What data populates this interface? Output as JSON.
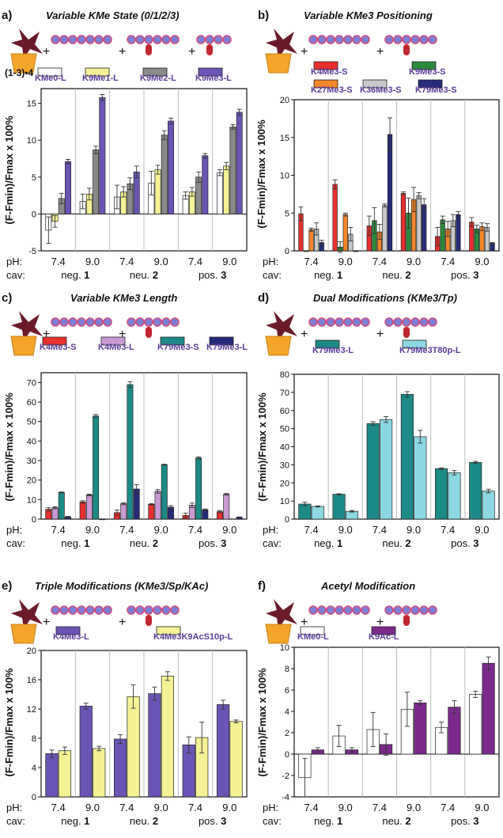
{
  "x_axis_text": {
    "ph_label": "pH:",
    "cav_label": "cav:",
    "ph_values": [
      "7.4",
      "9.0",
      "7.4",
      "9.0",
      "7.4",
      "9.0"
    ],
    "cav_groups": [
      "neg. 1",
      "neu. 2",
      "pos. 3"
    ]
  },
  "colors": {
    "purple": "#6a55b5",
    "yellow": "#f4f294",
    "gray": "#8a8a8a",
    "white": "#ffffff",
    "red": "#e8302c",
    "green": "#2d8a3a",
    "orange": "#f2872a",
    "lightgray": "#c8c8c8",
    "navy": "#262b7a",
    "lilac": "#c99ad4",
    "teal": "#1c8a86",
    "lightcyan": "#8cd8e2",
    "darkpurple": "#7b2a8c"
  },
  "chart_data": [
    {
      "panel": "a)",
      "type": "bar",
      "title": "Variable KMe State (0/1/2/3)",
      "ylabel": "(F-Fmin)/Fmax x 100%",
      "ylim": [
        -5,
        17
      ],
      "yticks": [
        -5,
        0,
        5,
        10,
        15
      ],
      "prefix_label": "(1-3)•4",
      "categories": [
        "pH 7.4 neg. 1",
        "pH 9.0 neg. 1",
        "pH 7.4 neu. 2",
        "pH 9.0 neu. 2",
        "pH 7.4 pos. 3",
        "pH 9.0 pos. 3"
      ],
      "series": [
        {
          "name": "KMe0-L",
          "color": "white",
          "values": [
            -2.2,
            1.7,
            2.3,
            4.2,
            2.5,
            5.6
          ],
          "errors": [
            1.8,
            1.0,
            1.6,
            1.6,
            0.5,
            0.4
          ]
        },
        {
          "name": "K9Me1-L",
          "color": "yellow",
          "values": [
            -1.0,
            2.7,
            3.0,
            6.0,
            3.0,
            6.5
          ],
          "errors": [
            0.8,
            0.8,
            0.7,
            0.6,
            0.6,
            0.5
          ]
        },
        {
          "name": "K9Me2-L",
          "color": "gray",
          "values": [
            2.1,
            8.7,
            4.1,
            10.7,
            5.0,
            11.8
          ],
          "errors": [
            0.7,
            0.5,
            0.8,
            0.6,
            0.7,
            0.3
          ]
        },
        {
          "name": "K9Me3-L",
          "color": "purple",
          "values": [
            7.1,
            15.8,
            5.7,
            12.6,
            7.9,
            13.8
          ],
          "errors": [
            0.3,
            0.4,
            0.8,
            0.4,
            0.3,
            0.4
          ]
        }
      ]
    },
    {
      "panel": "b)",
      "type": "bar",
      "title": "Variable KMe3 Positioning",
      "ylabel": "(F-Fmin)/Fmax x 100%",
      "ylim": [
        0,
        20
      ],
      "yticks": [
        0,
        5,
        10,
        15,
        20
      ],
      "categories": [
        "pH 7.4 neg. 1",
        "pH 9.0 neg. 1",
        "pH 7.4 neu. 2",
        "pH 9.0 neu. 2",
        "pH 7.4 pos. 3",
        "pH 9.0 pos. 3"
      ],
      "series": [
        {
          "name": "K4Me3-S",
          "color": "red",
          "values": [
            4.9,
            8.8,
            3.3,
            7.6,
            1.9,
            3.8
          ],
          "errors": [
            0.9,
            0.6,
            1.3,
            0.2,
            1.2,
            0.6
          ]
        },
        {
          "name": "K9Me3-S",
          "color": "green",
          "values": [
            -0.1,
            0.5,
            4.0,
            5.0,
            4.1,
            2.9
          ],
          "errors": [
            0.0,
            0.7,
            1.7,
            2.0,
            0.5,
            0.5
          ]
        },
        {
          "name": "K27Me3-S",
          "color": "orange",
          "values": [
            2.8,
            4.8,
            2.5,
            6.8,
            2.9,
            3.2
          ],
          "errors": [
            0.2,
            0.2,
            1.0,
            1.6,
            1.0,
            0.5
          ]
        },
        {
          "name": "K36Me3-S",
          "color": "lightgray",
          "values": [
            2.9,
            2.2,
            6.0,
            7.3,
            4.0,
            3.1
          ],
          "errors": [
            0.8,
            0.9,
            0.2,
            0.4,
            0.8,
            0.5
          ]
        },
        {
          "name": "K79Me3-S",
          "color": "navy",
          "values": [
            1.1,
            -0.1,
            15.4,
            6.1,
            4.8,
            1.0
          ],
          "errors": [
            0.3,
            0.0,
            2.2,
            0.8,
            0.4,
            0.1
          ]
        }
      ]
    },
    {
      "panel": "c)",
      "type": "bar",
      "title": "Variable KMe3 Length",
      "ylabel": "(F-Fmin)/Fmax x 100%",
      "ylim": [
        0,
        75
      ],
      "yticks": [
        0,
        10,
        20,
        30,
        40,
        50,
        60,
        70
      ],
      "categories": [
        "pH 7.4 neg. 1",
        "pH 9.0 neg. 1",
        "pH 7.4 neu. 2",
        "pH 9.0 neu. 2",
        "pH 7.4 pos. 3",
        "pH 9.0 pos. 3"
      ],
      "series": [
        {
          "name": "K4Me3-S",
          "color": "red",
          "values": [
            5.0,
            8.8,
            3.3,
            7.6,
            1.9,
            3.8
          ],
          "errors": [
            0.8,
            0.6,
            1.3,
            0.3,
            1.2,
            0.6
          ]
        },
        {
          "name": "K4Me3-L",
          "color": "lilac",
          "values": [
            5.8,
            12.4,
            7.9,
            14.2,
            7.1,
            12.7
          ],
          "errors": [
            0.5,
            0.4,
            0.5,
            0.9,
            1.1,
            0.4
          ]
        },
        {
          "name": "K79Me3-S",
          "color": "teal",
          "values": [
            13.7,
            52.8,
            68.9,
            27.9,
            31.3,
            0
          ],
          "errors": [
            0.2,
            0.8,
            1.5,
            0.2,
            0.5,
            0
          ]
        },
        {
          "name": "K79Me3-L",
          "color": "navy",
          "values": [
            1.1,
            -0.1,
            15.4,
            6.1,
            4.8,
            1.0
          ],
          "errors": [
            0.3,
            0.0,
            2.2,
            0.8,
            0.4,
            0.1
          ]
        }
      ]
    },
    {
      "panel": "d)",
      "type": "bar",
      "title": "Dual Modifications (KMe3/Tp)",
      "ylabel": "(F-Fmin)/Fmax x 100%",
      "ylim": [
        0,
        80
      ],
      "yticks": [
        0,
        10,
        20,
        30,
        40,
        50,
        60,
        70,
        80
      ],
      "categories": [
        "pH 7.4 neg. 1",
        "pH 9.0 neg. 1",
        "pH 7.4 neu. 2",
        "pH 9.0 neu. 2",
        "pH 7.4 pos. 3",
        "pH 9.0 pos. 3"
      ],
      "series": [
        {
          "name": "K79Me3-L",
          "color": "teal",
          "values": [
            8.3,
            13.7,
            52.8,
            68.9,
            27.9,
            31.3
          ],
          "errors": [
            1.0,
            0.3,
            1.0,
            1.5,
            0.4,
            0.6
          ]
        },
        {
          "name": "K79Me3T80p-L",
          "color": "lightcyan",
          "values": [
            7.0,
            4.3,
            55.0,
            45.5,
            25.6,
            15.5
          ],
          "errors": [
            0.3,
            0.4,
            1.6,
            3.5,
            1.2,
            1.0
          ]
        }
      ]
    },
    {
      "panel": "e)",
      "type": "bar",
      "title": "Triple Modifications (KMe3/Sp/KAc)",
      "ylabel": "(F-Fmin)/Fmax x 100%",
      "ylim": [
        0,
        20
      ],
      "yticks": [
        0,
        4,
        8,
        12,
        16,
        20
      ],
      "categories": [
        "pH 7.4 neg. 1",
        "pH 9.0 neg. 1",
        "pH 7.4 neu. 2",
        "pH 9.0 neu. 2",
        "pH 7.4 pos. 3",
        "pH 9.0 pos. 3"
      ],
      "series": [
        {
          "name": "K4Me3-L",
          "color": "purple",
          "values": [
            5.9,
            12.4,
            7.9,
            14.1,
            7.1,
            12.6
          ],
          "errors": [
            0.5,
            0.4,
            0.6,
            0.9,
            1.1,
            0.6
          ]
        },
        {
          "name": "K4Me3K9AcS10p-L",
          "color": "yellow",
          "values": [
            6.3,
            6.6,
            13.7,
            16.5,
            8.1,
            10.3
          ],
          "errors": [
            0.5,
            0.3,
            1.6,
            0.6,
            2.1,
            0.2
          ]
        }
      ]
    },
    {
      "panel": "f)",
      "type": "bar",
      "title": "Acetyl Modification",
      "ylabel": "(F-Fmin)/Fmax x 100%",
      "ylim": [
        -4,
        10
      ],
      "yticks": [
        -4,
        -2,
        0,
        2,
        4,
        6,
        8,
        10
      ],
      "categories": [
        "pH 7.4 neg. 1",
        "pH 9.0 neg. 1",
        "pH 7.4 neu. 2",
        "pH 9.0 neu. 2",
        "pH 7.4 pos. 3",
        "pH 9.0 pos. 3"
      ],
      "series": [
        {
          "name": "KMe0-L",
          "color": "white",
          "values": [
            -2.2,
            1.7,
            2.3,
            4.2,
            2.5,
            5.6
          ],
          "errors": [
            1.8,
            1.0,
            1.6,
            1.6,
            0.5,
            0.3
          ]
        },
        {
          "name": "K9Ac-L",
          "color": "darkpurple",
          "values": [
            0.4,
            0.4,
            0.9,
            4.8,
            4.4,
            8.5
          ],
          "errors": [
            0.2,
            0.2,
            1.0,
            0.2,
            0.6,
            0.6
          ]
        }
      ]
    }
  ]
}
